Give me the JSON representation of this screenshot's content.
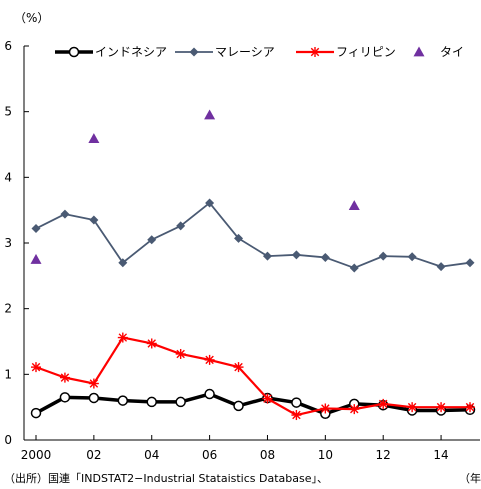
{
  "y_unit": "（%）",
  "source_note": "（出所）国連「INDSTAT2−Industrial Stataistics Database」、",
  "x_unit": "（年",
  "chart_data": {
    "type": "line",
    "x": [
      2000,
      2001,
      2002,
      2003,
      2004,
      2005,
      2006,
      2007,
      2008,
      2009,
      2010,
      2011,
      2012,
      2013,
      2014,
      2015
    ],
    "xticks": [
      2000,
      2002,
      2004,
      2006,
      2008,
      2010,
      2012,
      2014
    ],
    "xtick_labels": [
      "2000",
      "02",
      "04",
      "06",
      "08",
      "10",
      "12",
      "14"
    ],
    "ylim": [
      0,
      6
    ],
    "yticks": [
      "0",
      "1",
      "2",
      "3",
      "4",
      "5",
      "6"
    ],
    "legend_position": "top",
    "series": [
      {
        "name": "インドネシア",
        "color": "#000000",
        "marker": "open-circle",
        "x": [
          2000,
          2001,
          2002,
          2003,
          2004,
          2005,
          2006,
          2007,
          2008,
          2009,
          2010,
          2011,
          2012,
          2013,
          2014,
          2015
        ],
        "values": [
          0.41,
          0.65,
          0.64,
          0.6,
          0.58,
          0.58,
          0.7,
          0.52,
          0.64,
          0.57,
          0.4,
          0.55,
          0.53,
          0.45,
          0.45,
          0.46
        ]
      },
      {
        "name": "マレーシア",
        "color": "#4a5a73",
        "marker": "diamond",
        "x": [
          2000,
          2001,
          2002,
          2003,
          2004,
          2005,
          2006,
          2007,
          2008,
          2009,
          2010,
          2011,
          2012,
          2013,
          2014,
          2015
        ],
        "values": [
          3.22,
          3.44,
          3.35,
          2.7,
          3.05,
          3.26,
          3.61,
          3.07,
          2.8,
          2.82,
          2.78,
          2.62,
          2.8,
          2.79,
          2.64,
          2.7
        ]
      },
      {
        "name": "フィリピン",
        "color": "#ff0000",
        "marker": "asterisk",
        "x": [
          2000,
          2001,
          2002,
          2003,
          2004,
          2005,
          2006,
          2007,
          2008,
          2009,
          2010,
          2011,
          2012,
          2013,
          2014,
          2015
        ],
        "values": [
          1.11,
          0.95,
          0.86,
          1.56,
          1.47,
          1.31,
          1.22,
          1.11,
          0.63,
          0.38,
          0.48,
          0.47,
          0.55,
          0.5,
          0.5,
          0.5
        ]
      },
      {
        "name": "タイ",
        "color": "#7030a0",
        "marker": "triangle",
        "x": [
          2000,
          2002,
          2006,
          2011
        ],
        "values": [
          2.75,
          4.59,
          4.95,
          3.57
        ]
      }
    ]
  }
}
